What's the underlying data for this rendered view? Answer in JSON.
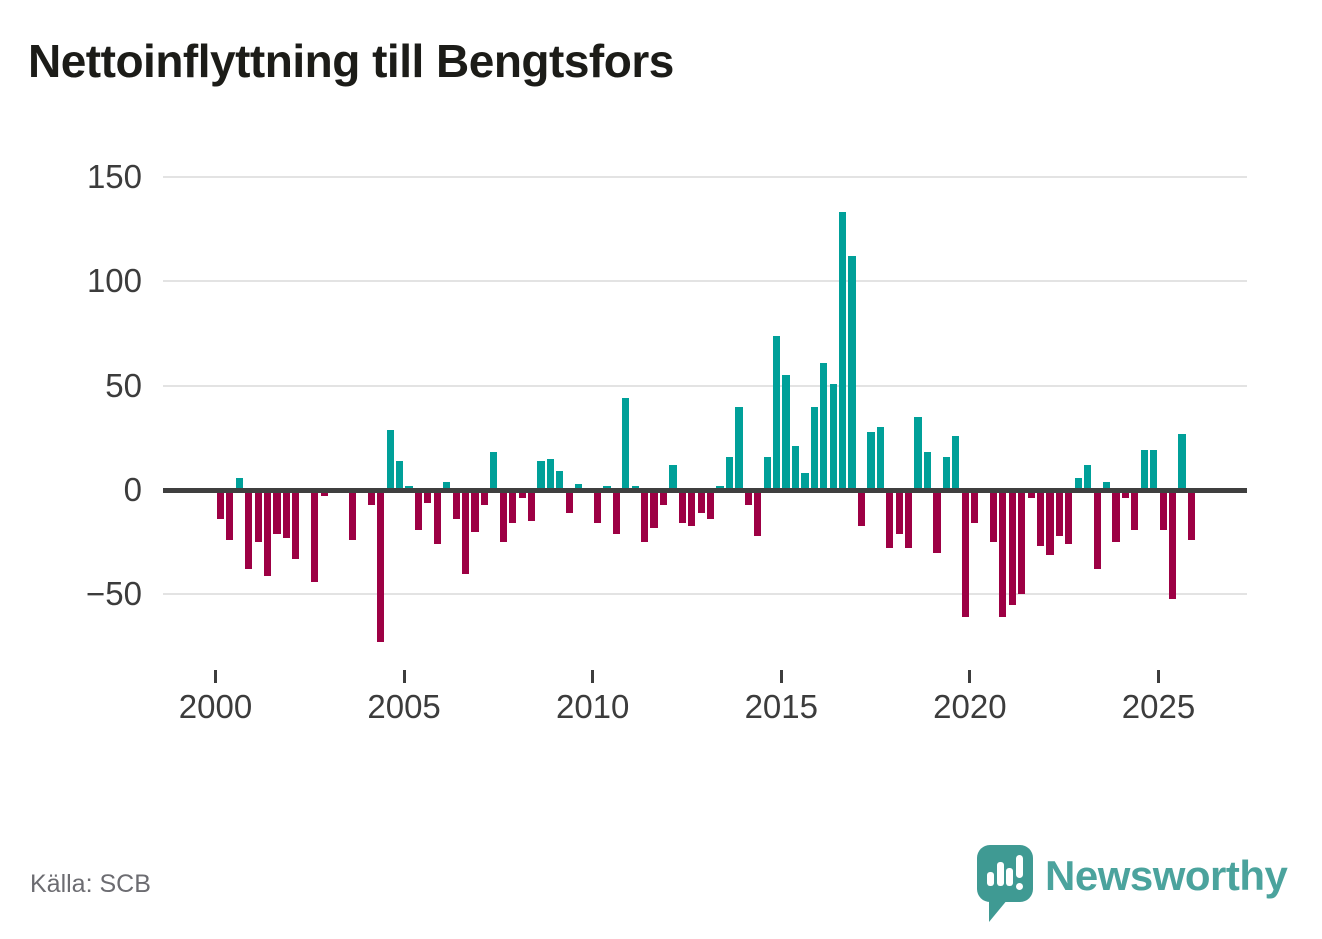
{
  "title": "Nettoinflyttning till Bengtsfors",
  "source": "Källa: SCB",
  "logo": {
    "text": "Newsworthy",
    "icon": "speech-bubble-bar-chart-icon",
    "color": "#4ba39d"
  },
  "colors": {
    "positive": "#00a099",
    "negative": "#9d0044",
    "baseline": "#3f3f3f",
    "gridline": "#e3e3e3",
    "axis_text": "#3c3c3c",
    "title_text": "#1c1c18",
    "source_text": "#6c6c71"
  },
  "chart_data": {
    "type": "bar",
    "title": "Nettoinflyttning till Bengtsfors",
    "xlabel": "",
    "ylabel": "",
    "frequency": "quarterly",
    "x_start": "2000-Q1",
    "x_end": "2025-Q4",
    "ylim": [
      -80,
      160
    ],
    "grid": true,
    "legend": false,
    "yticks": [
      150,
      100,
      50,
      0,
      -50
    ],
    "ytick_labels": [
      "150",
      "100",
      "50",
      "0",
      "−50"
    ],
    "xticks": [
      2000,
      2005,
      2010,
      2015,
      2020,
      2025
    ],
    "xtick_labels": [
      "2000",
      "2005",
      "2010",
      "2015",
      "2020",
      "2025"
    ],
    "positive_color": "#00a099",
    "negative_color": "#9d0044",
    "values": [
      -14,
      -24,
      6,
      -38,
      -25,
      -41,
      -21,
      -23,
      -33,
      0,
      -44,
      -3,
      0,
      0,
      -24,
      0,
      -7,
      -73,
      29,
      14,
      2,
      -19,
      -6,
      -26,
      4,
      -14,
      -40,
      -20,
      -7,
      18,
      -25,
      -16,
      -4,
      -15,
      14,
      15,
      9,
      -11,
      3,
      0,
      -16,
      2,
      -21,
      44,
      2,
      -25,
      -18,
      -7,
      12,
      -16,
      -17,
      -11,
      -14,
      2,
      16,
      40,
      -7,
      -22,
      16,
      74,
      55,
      21,
      8,
      40,
      61,
      51,
      133,
      112,
      -17,
      28,
      30,
      -28,
      -21,
      -28,
      35,
      18,
      -30,
      16,
      26,
      -61,
      -16,
      0,
      -25,
      -61,
      -55,
      -50,
      -4,
      -27,
      -31,
      -22,
      -26,
      6,
      12,
      -38,
      4,
      -25,
      -4,
      -19,
      19,
      19,
      -19,
      -52,
      27,
      -24
    ]
  }
}
